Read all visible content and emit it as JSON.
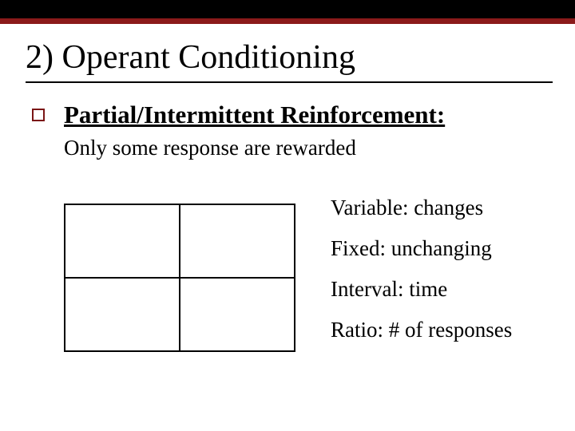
{
  "colors": {
    "accent": "#8b1a1a",
    "bullet_border": "#7a1515",
    "rule": "#000000",
    "background": "#ffffff",
    "text": "#000000"
  },
  "title": "2)  Operant Conditioning",
  "subheading": "Partial/Intermittent Reinforcement:",
  "subtext": "Only some response are rewarded",
  "grid": {
    "rows": 2,
    "cols": 2
  },
  "definitions": [
    "Variable:  changes",
    "Fixed: unchanging",
    "Interval:  time",
    "Ratio:  # of responses"
  ]
}
